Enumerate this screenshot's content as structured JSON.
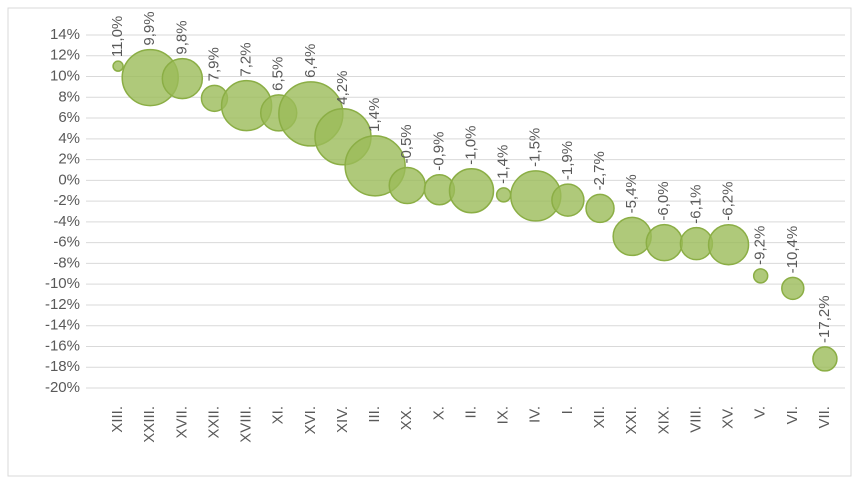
{
  "chart_data": {
    "type": "bubble",
    "categories": [
      "XIII.",
      "XXIII.",
      "XVII.",
      "XXII.",
      "XVIII.",
      "XI.",
      "XVI.",
      "XIV.",
      "III.",
      "XX.",
      "X.",
      "II.",
      "IX.",
      "IV.",
      "I.",
      "XII.",
      "XXI.",
      "XIX.",
      "VIII.",
      "XV.",
      "V.",
      "VI.",
      "VII."
    ],
    "values": [
      11.0,
      9.9,
      9.8,
      7.9,
      7.2,
      6.5,
      6.4,
      4.2,
      1.4,
      -0.5,
      -0.9,
      -1.0,
      -1.4,
      -1.5,
      -1.9,
      -2.7,
      -5.4,
      -6.0,
      -6.1,
      -6.2,
      -9.2,
      -10.4,
      -17.2
    ],
    "value_labels": [
      "11,0%",
      "9,9%",
      "9,8%",
      "7,9%",
      "7,2%",
      "6,5%",
      "6,4%",
      "4,2%",
      "1,4%",
      "-0,5%",
      "-0,9%",
      "-1,0%",
      "-1,4%",
      "-1,5%",
      "-1,9%",
      "-2,7%",
      "-5,4%",
      "-6,0%",
      "-6,1%",
      "-6,2%",
      "-9,2%",
      "-10,4%",
      "-17,2%"
    ],
    "sizes": [
      25,
      784,
      400,
      169,
      625,
      324,
      1024,
      784,
      900,
      324,
      225,
      484,
      49,
      625,
      256,
      196,
      361,
      324,
      256,
      400,
      49,
      121,
      144
    ],
    "color": "#9bbb59",
    "ylim": [
      -20,
      14
    ],
    "yticks": [
      {
        "value": -20,
        "label": "-20%"
      },
      {
        "value": -18,
        "label": "-18%"
      },
      {
        "value": -16,
        "label": "-16%"
      },
      {
        "value": -14,
        "label": "-14%"
      },
      {
        "value": -12,
        "label": "-12%"
      },
      {
        "value": -10,
        "label": "-10%"
      },
      {
        "value": -8,
        "label": "-8%"
      },
      {
        "value": -6,
        "label": "-6%"
      },
      {
        "value": -4,
        "label": "-4%"
      },
      {
        "value": -2,
        "label": "-2%"
      },
      {
        "value": 0,
        "label": "0%"
      },
      {
        "value": 2,
        "label": "2%"
      },
      {
        "value": 4,
        "label": "4%"
      },
      {
        "value": 6,
        "label": "6%"
      },
      {
        "value": 8,
        "label": "8%"
      },
      {
        "value": 10,
        "label": "10%"
      },
      {
        "value": 12,
        "label": "12%"
      },
      {
        "value": 14,
        "label": "14%"
      }
    ],
    "grid": true
  }
}
